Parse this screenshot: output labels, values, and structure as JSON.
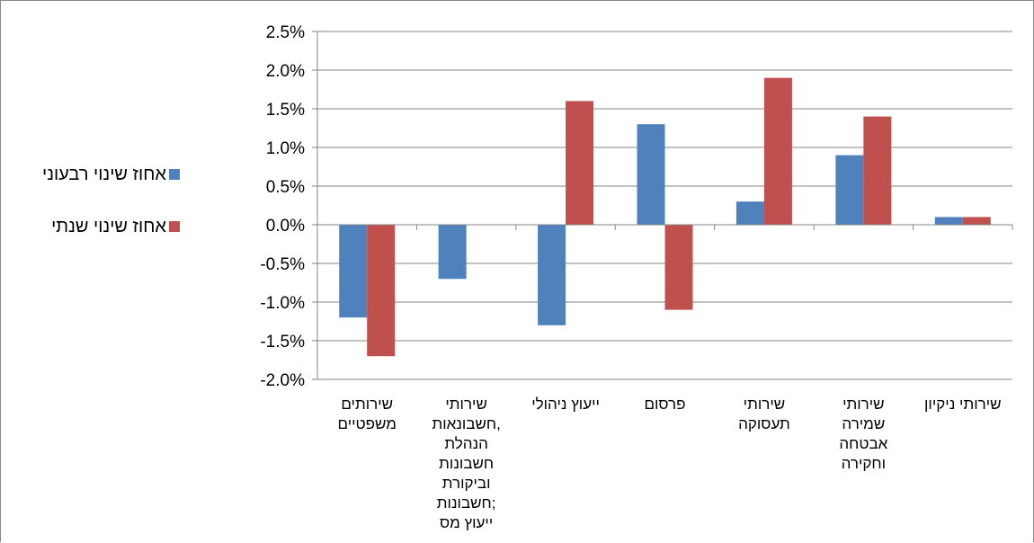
{
  "colors": {
    "quarterly": "#4F81BD",
    "annual": "#C0504D",
    "grid": "#868686",
    "axis": "#868686"
  },
  "chart_data": {
    "type": "bar",
    "title": "",
    "xlabel": "",
    "ylabel": "",
    "ylim": [
      -0.02,
      0.025
    ],
    "yticks": [
      "2.5%",
      "2.0%",
      "1.5%",
      "1.0%",
      "0.5%",
      "0.0%",
      "-0.5%",
      "-1.0%",
      "-1.5%",
      "-2.0%"
    ],
    "ytick_values": [
      0.025,
      0.02,
      0.015,
      0.01,
      0.005,
      0.0,
      -0.005,
      -0.01,
      -0.015,
      -0.02
    ],
    "grid": true,
    "legend_position": "left",
    "categories": [
      [
        "שירותים",
        "משפטיים"
      ],
      [
        "שירותי",
        "חשבונאות,",
        "הנהלת",
        "חשבונות",
        "וביקורת",
        "חשבונות;",
        "ייעוץ מס"
      ],
      [
        "ייעוץ ניהולי"
      ],
      [
        "פרסום"
      ],
      [
        "שירותי",
        "תעסוקה"
      ],
      [
        "שירותי",
        "שמירה",
        "אבטחה",
        "וחקירה"
      ],
      [
        "שירותי ניקיון"
      ]
    ],
    "series": [
      {
        "name": "אחוז שינוי רבעוני",
        "values": [
          -0.012,
          -0.007,
          -0.013,
          0.013,
          0.003,
          0.009,
          0.001
        ]
      },
      {
        "name": "אחוז שינוי שנתי",
        "values": [
          -0.017,
          0.0,
          0.016,
          -0.011,
          0.019,
          0.014,
          0.001
        ]
      }
    ]
  }
}
